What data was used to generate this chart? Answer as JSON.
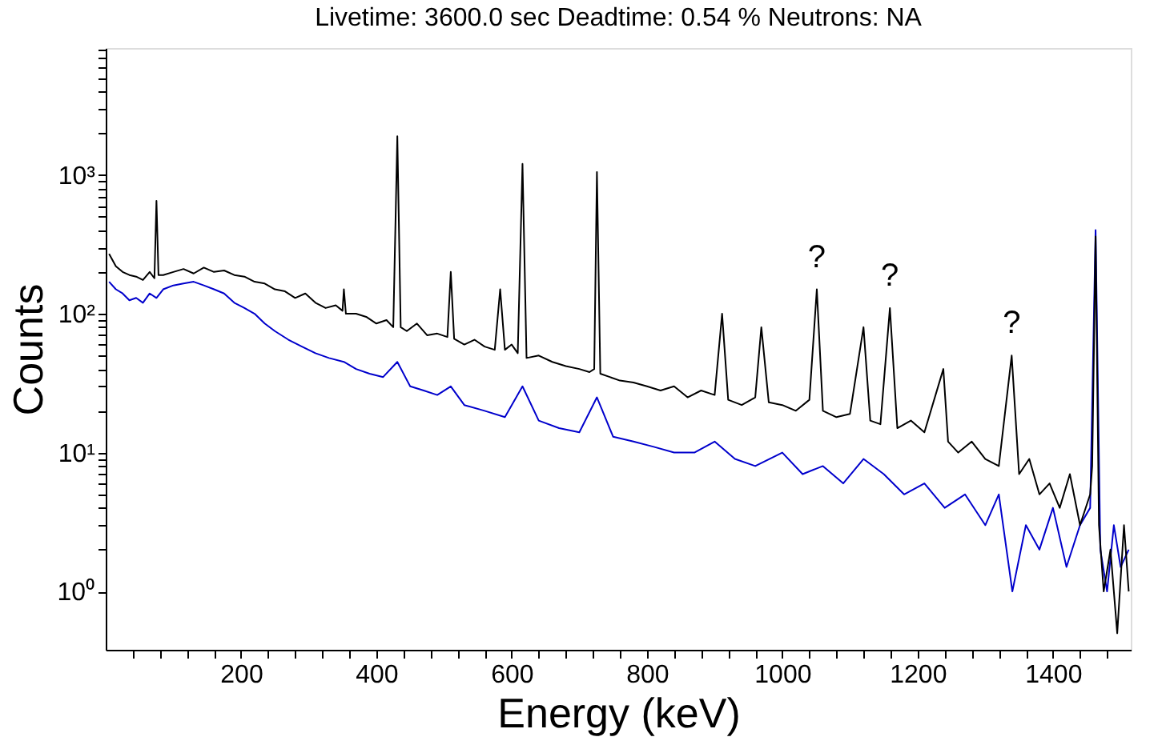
{
  "chart_data": {
    "type": "line",
    "title": "Livetime: 3600.0 sec     Deadtime: 0.54 %       Neutrons: NA",
    "xlabel": "Energy (keV)",
    "ylabel": "Counts",
    "log": "y",
    "grid": false,
    "line_style": "solid",
    "marker": "none",
    "xlim": [
      0,
      1515
    ],
    "ylim": [
      0.38,
      8200
    ],
    "xticks": [
      {
        "value": 40,
        "label": null
      },
      {
        "value": 80,
        "label": null
      },
      {
        "value": 120,
        "label": null
      },
      {
        "value": 160,
        "label": null
      },
      200,
      {
        "value": 240,
        "label": null
      },
      {
        "value": 280,
        "label": null
      },
      {
        "value": 320,
        "label": null
      },
      {
        "value": 360,
        "label": null
      },
      400,
      {
        "value": 440,
        "label": null
      },
      {
        "value": 480,
        "label": null
      },
      {
        "value": 520,
        "label": null
      },
      {
        "value": 560,
        "label": null
      },
      600,
      {
        "value": 640,
        "label": null
      },
      {
        "value": 680,
        "label": null
      },
      {
        "value": 720,
        "label": null
      },
      {
        "value": 760,
        "label": null
      },
      800,
      {
        "value": 840,
        "label": null
      },
      {
        "value": 880,
        "label": null
      },
      {
        "value": 920,
        "label": null
      },
      {
        "value": 960,
        "label": null
      },
      1000,
      {
        "value": 1040,
        "label": null
      },
      {
        "value": 1080,
        "label": null
      },
      {
        "value": 1120,
        "label": null
      },
      {
        "value": 1160,
        "label": null
      },
      1200,
      {
        "value": 1240,
        "label": null
      },
      {
        "value": 1280,
        "label": null
      },
      {
        "value": 1320,
        "label": null
      },
      {
        "value": 1360,
        "label": null
      },
      1400,
      {
        "value": 1440,
        "label": null
      },
      {
        "value": 1480,
        "label": null
      }
    ],
    "yticks": [
      {
        "value": 1,
        "label": "10⁰"
      },
      {
        "value": 2,
        "label": null
      },
      {
        "value": 3,
        "label": null
      },
      {
        "value": 4,
        "label": null
      },
      {
        "value": 5,
        "label": null
      },
      {
        "value": 6,
        "label": null
      },
      {
        "value": 7,
        "label": null
      },
      {
        "value": 8,
        "label": null
      },
      {
        "value": 9,
        "label": null
      },
      {
        "value": 10,
        "label": "10¹"
      },
      {
        "value": 20,
        "label": null
      },
      {
        "value": 30,
        "label": null
      },
      {
        "value": 40,
        "label": null
      },
      {
        "value": 50,
        "label": null
      },
      {
        "value": 60,
        "label": null
      },
      {
        "value": 70,
        "label": null
      },
      {
        "value": 80,
        "label": null
      },
      {
        "value": 90,
        "label": null
      },
      {
        "value": 100,
        "label": "10²"
      },
      {
        "value": 200,
        "label": null
      },
      {
        "value": 300,
        "label": null
      },
      {
        "value": 400,
        "label": null
      },
      {
        "value": 500,
        "label": null
      },
      {
        "value": 600,
        "label": null
      },
      {
        "value": 700,
        "label": null
      },
      {
        "value": 800,
        "label": null
      },
      {
        "value": 900,
        "label": null
      },
      {
        "value": 1000,
        "label": "10³"
      },
      {
        "value": 2000,
        "label": null
      },
      {
        "value": 3000,
        "label": null
      },
      {
        "value": 4000,
        "label": null
      },
      {
        "value": 5000,
        "label": null
      },
      {
        "value": 6000,
        "label": null
      },
      {
        "value": 7000,
        "label": null
      },
      {
        "value": 8000,
        "label": null
      }
    ],
    "annotations": [
      {
        "text": "?",
        "x": 1051,
        "y": 150
      },
      {
        "text": "?",
        "x": 1159,
        "y": 110
      },
      {
        "text": "?",
        "x": 1339,
        "y": 50
      }
    ],
    "series": [
      {
        "color": "#0000cc",
        "x": [
          5,
          15,
          25,
          35,
          45,
          55,
          65,
          75,
          85,
          100,
          115,
          130,
          145,
          160,
          175,
          190,
          205,
          220,
          235,
          250,
          270,
          290,
          310,
          330,
          352,
          370,
          390,
          410,
          431,
          450,
          470,
          490,
          510,
          530,
          560,
          590,
          616,
          640,
          670,
          700,
          726,
          750,
          780,
          810,
          840,
          870,
          900,
          930,
          960,
          1000,
          1030,
          1060,
          1090,
          1120,
          1150,
          1180,
          1210,
          1240,
          1270,
          1300,
          1320,
          1340,
          1360,
          1380,
          1400,
          1420,
          1440,
          1455,
          1463,
          1470,
          1480,
          1490,
          1500,
          1512
        ],
        "values": [
          170,
          150,
          140,
          125,
          130,
          120,
          140,
          130,
          150,
          160,
          165,
          170,
          160,
          150,
          140,
          120,
          110,
          100,
          85,
          75,
          65,
          58,
          52,
          48,
          45,
          40,
          37,
          35,
          45,
          30,
          28,
          26,
          30,
          22,
          20,
          18,
          30,
          17,
          15,
          14,
          25,
          13,
          12,
          11,
          10,
          10,
          12,
          9,
          8,
          10,
          7,
          8,
          6,
          9,
          7,
          5,
          6,
          4,
          5,
          3,
          5,
          1,
          3,
          2,
          4,
          1.5,
          3,
          4,
          400,
          2,
          1,
          3,
          1.5,
          2
        ]
      },
      {
        "color": "#000000",
        "x": [
          5,
          15,
          25,
          35,
          45,
          55,
          65,
          72,
          75,
          78,
          85,
          100,
          115,
          130,
          145,
          160,
          175,
          190,
          205,
          220,
          235,
          250,
          265,
          280,
          295,
          310,
          325,
          340,
          350,
          352,
          355,
          370,
          385,
          400,
          415,
          425,
          431,
          436,
          445,
          460,
          475,
          490,
          505,
          510,
          515,
          530,
          545,
          560,
          575,
          583,
          590,
          600,
          609,
          616,
          622,
          640,
          660,
          680,
          700,
          715,
          722,
          726,
          731,
          745,
          760,
          780,
          800,
          820,
          840,
          860,
          880,
          900,
          911,
          920,
          940,
          960,
          969,
          980,
          1000,
          1020,
          1040,
          1051,
          1060,
          1080,
          1100,
          1120,
          1130,
          1145,
          1159,
          1170,
          1190,
          1210,
          1238,
          1245,
          1260,
          1280,
          1300,
          1320,
          1339,
          1350,
          1365,
          1380,
          1395,
          1410,
          1425,
          1440,
          1455,
          1458,
          1463,
          1468,
          1475,
          1485,
          1495,
          1505,
          1512
        ],
        "values": [
          270,
          220,
          200,
          190,
          185,
          175,
          200,
          180,
          650,
          190,
          190,
          200,
          210,
          195,
          215,
          200,
          205,
          190,
          185,
          170,
          165,
          150,
          145,
          130,
          140,
          120,
          110,
          115,
          105,
          150,
          100,
          100,
          95,
          85,
          90,
          80,
          1900,
          80,
          75,
          85,
          70,
          72,
          68,
          200,
          66,
          60,
          65,
          58,
          55,
          150,
          55,
          60,
          52,
          1200,
          48,
          50,
          45,
          42,
          40,
          38,
          40,
          1050,
          37,
          35,
          33,
          32,
          30,
          28,
          30,
          25,
          28,
          26,
          100,
          24,
          22,
          25,
          80,
          23,
          22,
          20,
          24,
          150,
          20,
          18,
          19,
          80,
          17,
          16,
          110,
          15,
          17,
          14,
          40,
          12,
          10,
          12,
          9,
          8,
          50,
          7,
          9,
          5,
          6,
          4,
          7,
          3,
          5,
          8,
          360,
          3,
          1,
          2,
          0.5,
          3,
          1
        ]
      }
    ]
  }
}
